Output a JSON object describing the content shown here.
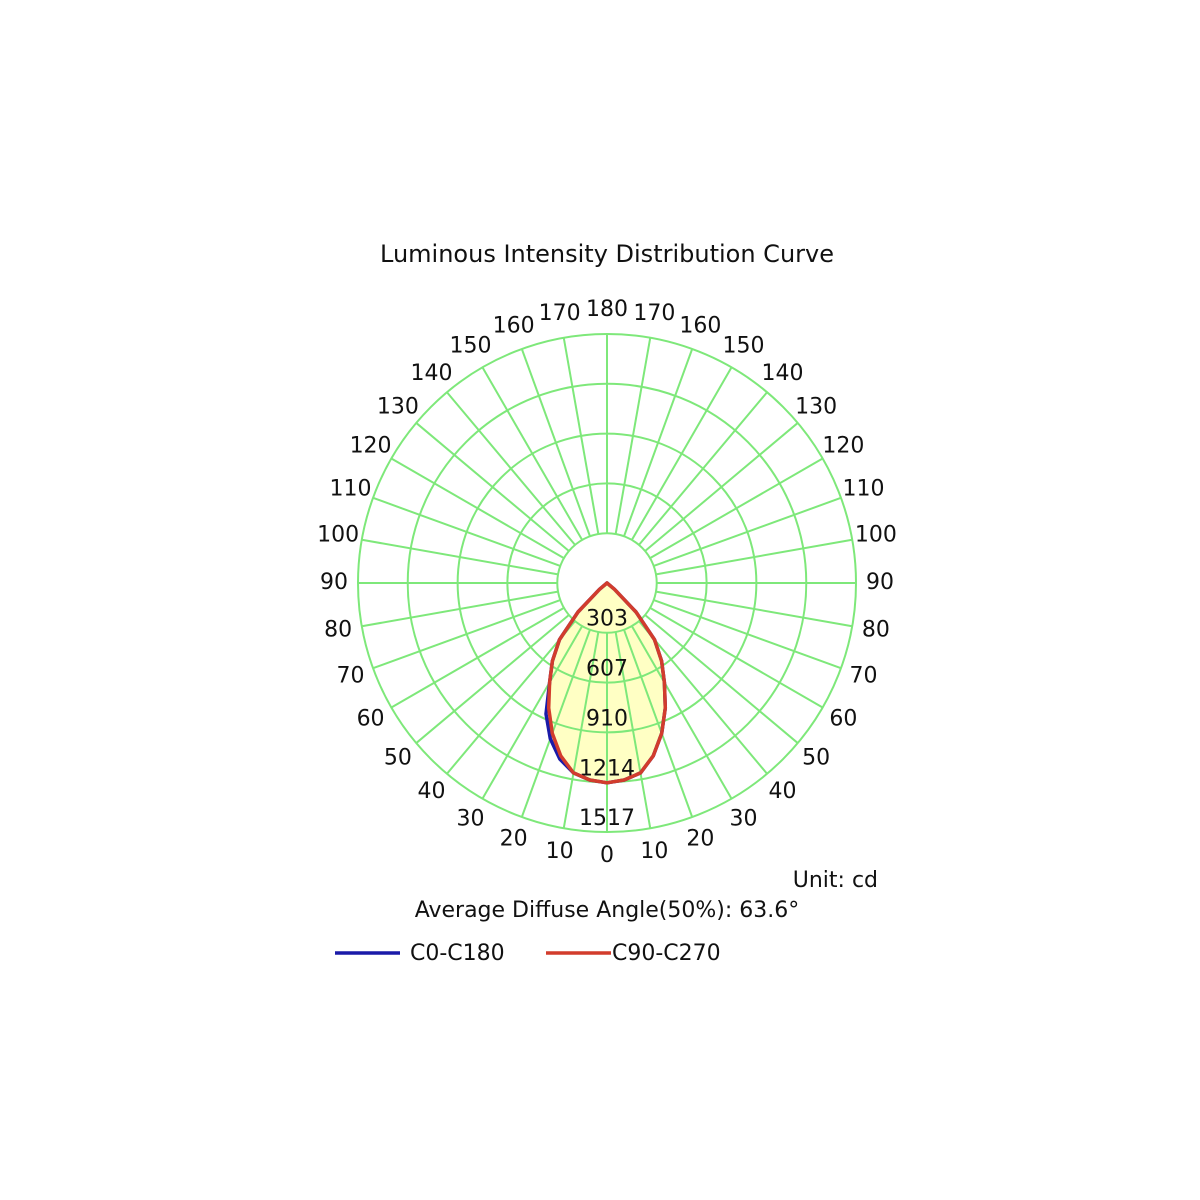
{
  "chart_data": {
    "type": "polar",
    "title": "Luminous Intensity Distribution Curve",
    "unit_label": "Unit: cd",
    "annotation": "Average Diffuse Angle(50%): 63.6°",
    "rlim": [
      0,
      1517
    ],
    "rticks": [
      303,
      607,
      910,
      1214,
      1517
    ],
    "thetaticks": [
      0,
      10,
      20,
      30,
      40,
      50,
      60,
      70,
      80,
      90,
      100,
      110,
      120,
      130,
      140,
      150,
      160,
      170,
      180
    ],
    "grid_color": "#7ee87a",
    "fill_color": "#ffffc4",
    "angles": [
      -60,
      -55,
      -50,
      -45,
      -40,
      -35,
      -30,
      -25,
      -20,
      -15,
      -10,
      -5,
      0,
      5,
      10,
      15,
      20,
      25,
      30,
      35,
      40,
      45,
      50,
      55,
      60
    ],
    "series": [
      {
        "name": "C0-C180",
        "color": "#1a1aa8",
        "values": [
          0,
          0,
          60,
          250,
          450,
          580,
          700,
          880,
          1010,
          1110,
          1175,
          1205,
          1217,
          1205,
          1175,
          1090,
          975,
          840,
          700,
          580,
          450,
          250,
          60,
          0,
          0
        ]
      },
      {
        "name": "C90-C270",
        "color": "#d23c2c",
        "values": [
          0,
          0,
          60,
          250,
          450,
          580,
          700,
          840,
          975,
          1090,
          1175,
          1205,
          1217,
          1205,
          1175,
          1090,
          975,
          840,
          700,
          580,
          450,
          250,
          60,
          0,
          0
        ]
      }
    ]
  }
}
